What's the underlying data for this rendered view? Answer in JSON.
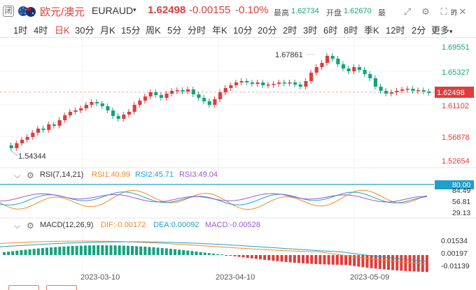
{
  "header": {
    "closed_badge": "闭",
    "pair_name": "欧元/澳元",
    "symbol": "EURAUD",
    "symbol_caret": "▾",
    "price": "1.62498",
    "change": "-0.00155",
    "change_pct": "-0.10%",
    "high_label": "最高",
    "high_value": "1.62734",
    "open_label": "开盘",
    "open_value": "1.62670",
    "cut_label": "最",
    "cut_label2": "昨",
    "icons": [
      "expand-icon",
      "settings-icon",
      "fullscreen-icon",
      "close-icon"
    ]
  },
  "tabs": {
    "items": [
      "1时",
      "4时",
      "日K",
      "30分",
      "月K",
      "15分",
      "周K",
      "5分",
      "分时",
      "年K",
      "10分",
      "20分",
      "2时",
      "3时",
      "6时",
      "8时",
      "季K",
      "12时",
      "2分"
    ],
    "active_index": 2,
    "more_label": "更多",
    "more_caret": "▾"
  },
  "main_chart": {
    "y_ticks": [
      "1.69551",
      "1.65327",
      "1.61102",
      "1.56878",
      "1.52654"
    ],
    "current_price_label": "1.62498",
    "high_annotation": "1.67861",
    "low_annotation": "1.54344"
  },
  "rsi": {
    "title": "RSI(7,14,21)",
    "rsi1": "RSI1:40.99",
    "rsi2": "RSI2:45.71",
    "rsi3": "RSI3:49.04",
    "ticks": [
      "80.00",
      "84.49",
      "56.81",
      "29.13"
    ]
  },
  "macd": {
    "title": "MACD(12,26,9)",
    "dif": "DIF:-0.00172",
    "dea": "DEA:0.00092",
    "macd": "MACD:-0.00528",
    "ticks": [
      "0.01534",
      "0.00197",
      "-0.01139"
    ]
  },
  "x_axis": {
    "labels": [
      "2023-03-10",
      "2023-04-10",
      "2023-05-09"
    ]
  },
  "colors": {
    "up": "#e23b3b",
    "down": "#14a37f",
    "rsi1": "#f08a24",
    "rsi2": "#1fa0c8",
    "rsi3": "#9b59d0",
    "accent": "#e23b3b"
  }
}
